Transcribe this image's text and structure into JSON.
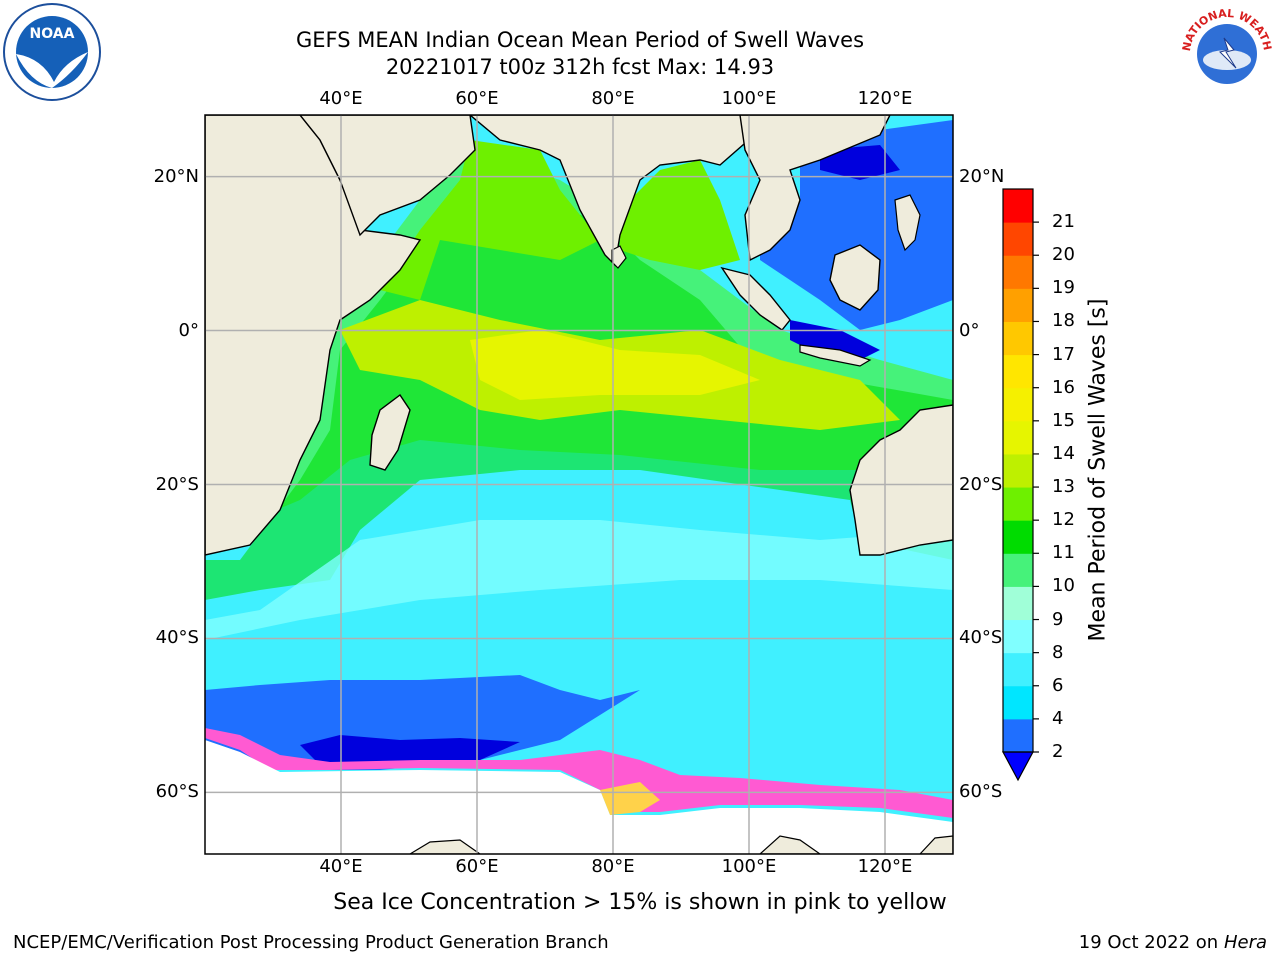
{
  "title": {
    "line1": "GEFS MEAN Indian Ocean Mean Period of Swell Waves",
    "line2": "20221017 t00z 312h fcst   Max: 14.93"
  },
  "logos": {
    "left": {
      "icon": "noaa-logo",
      "text": "NOAA"
    },
    "right": {
      "icon": "national-weather-service-logo",
      "text": "NATIONAL WEATHER SERVICE"
    }
  },
  "map": {
    "lon_range": [
      20,
      130
    ],
    "lat_range": [
      -68,
      28
    ],
    "lon_ticks": [
      "40°E",
      "60°E",
      "80°E",
      "100°E",
      "120°E"
    ],
    "lat_ticks_left": [
      "20°N",
      "0°",
      "20°S",
      "40°S",
      "60°S"
    ],
    "lat_ticks_right": [
      "20°N",
      "0°",
      "20°S",
      "40°S",
      "60°S"
    ],
    "colors": {
      "land": "#efecdc",
      "grid": "#b0b0b0"
    }
  },
  "colorbar": {
    "label": "Mean Period of Swell Waves [s]",
    "tick_labels": [
      "2",
      "4",
      "6",
      "8",
      "9",
      "10",
      "11",
      "12",
      "13",
      "14",
      "15",
      "16",
      "17",
      "18",
      "19",
      "20",
      "21"
    ],
    "colors": [
      "#1f6fff",
      "#00e6ff",
      "#40f0ff",
      "#80ffff",
      "#a0ffd8",
      "#46f27a",
      "#00dc00",
      "#6ef000",
      "#bef000",
      "#e6f500",
      "#f5f000",
      "#ffe600",
      "#ffc800",
      "#ffa000",
      "#ff7800",
      "#ff4600",
      "#ff0000"
    ],
    "extend_color": "#0000ff"
  },
  "caption": "Sea Ice Concentration > 15% is shown in pink to yellow",
  "footer": {
    "left": "NCEP/EMC/Verification Post Processing Product Generation Branch",
    "right_prefix": "19 Oct 2022 on",
    "right_host": "Hera"
  }
}
